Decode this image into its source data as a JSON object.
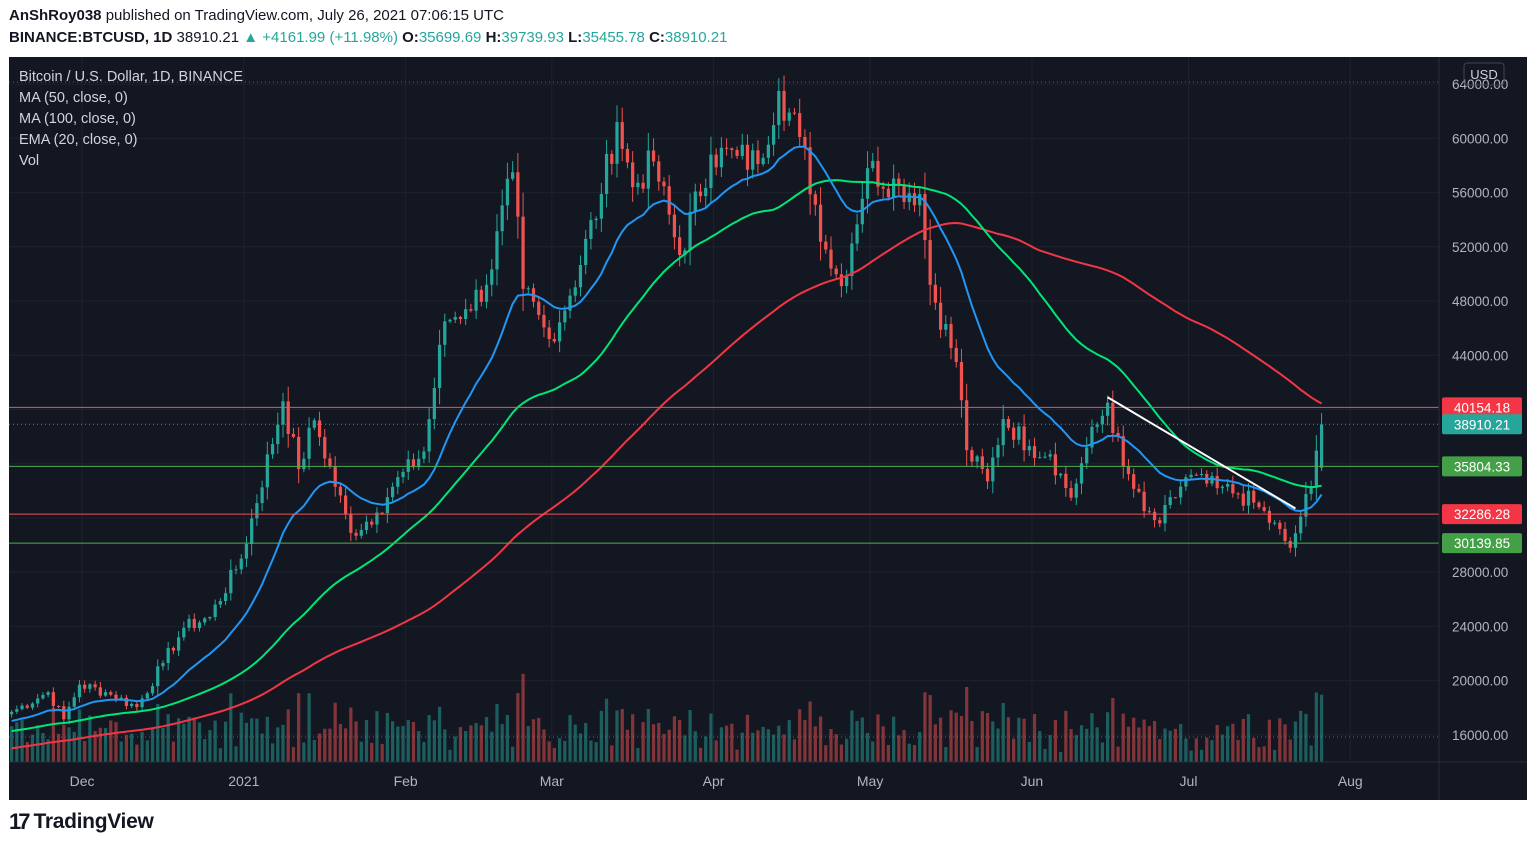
{
  "header": {
    "publisher": "AnShRoy038",
    "published_text": "published on TradingView.com, July 26, 2021 07:06:15 UTC",
    "symbol": "BINANCE:BTCUSD, 1D",
    "last": "38910.21",
    "change": "+4161.99 (+11.98%)",
    "o_label": "O:",
    "o": "35699.69",
    "h_label": "H:",
    "h": "39739.93",
    "l_label": "L:",
    "l": "35455.78",
    "c_label": "C:",
    "c": "38910.21"
  },
  "legend": {
    "title": "Bitcoin / U.S. Dollar, 1D, BINANCE",
    "ma50": "MA (50, close, 0)",
    "ma100": "MA (100, close, 0)",
    "ema20": "EMA (20, close, 0)",
    "vol": "Vol"
  },
  "footer": {
    "brand": "TradingView",
    "mark": "17"
  },
  "colors": {
    "background": "#131722",
    "up": "#26a69a",
    "down": "#ef5350",
    "ma50": "#00e676",
    "ma100": "#f23645",
    "ema20": "#2196f3",
    "trendline": "#ffffff"
  },
  "chart_data": {
    "type": "candlestick",
    "currency": "USD",
    "y_ticks": [
      16000,
      20000,
      24000,
      28000,
      32000,
      36000,
      40000,
      44000,
      48000,
      52000,
      56000,
      60000,
      64000
    ],
    "y_tick_labels": [
      "16000.00",
      "20000.00",
      "24000.00",
      "28000.00",
      "32000.00",
      "36000.00",
      "40000.00",
      "44000.00",
      "48000.00",
      "52000.00",
      "56000.00",
      "60000.00",
      "64000.00"
    ],
    "ylim": [
      14000,
      66000
    ],
    "x_start": "2020-11-17",
    "x_end": "2021-08-18",
    "x_ticks": [
      {
        "date": "2020-12-01",
        "label": "Dec"
      },
      {
        "date": "2021-01-01",
        "label": "2021"
      },
      {
        "date": "2021-02-01",
        "label": "Feb"
      },
      {
        "date": "2021-03-01",
        "label": "Mar"
      },
      {
        "date": "2021-04-01",
        "label": "Apr"
      },
      {
        "date": "2021-05-01",
        "label": "May"
      },
      {
        "date": "2021-06-01",
        "label": "Jun"
      },
      {
        "date": "2021-07-01",
        "label": "Jul"
      },
      {
        "date": "2021-08-01",
        "label": "Aug"
      }
    ],
    "key_close_anchors": [
      [
        "2020-11-17",
        17700
      ],
      [
        "2020-11-24",
        19150
      ],
      [
        "2020-11-27",
        17150
      ],
      [
        "2020-11-30",
        19700
      ],
      [
        "2020-12-05",
        19150
      ],
      [
        "2020-12-11",
        18050
      ],
      [
        "2020-12-16",
        21300
      ],
      [
        "2020-12-20",
        23900
      ],
      [
        "2020-12-25",
        24700
      ],
      [
        "2020-12-31",
        29000
      ],
      [
        "2021-01-08",
        40600
      ],
      [
        "2021-01-11",
        35600
      ],
      [
        "2021-01-14",
        39200
      ],
      [
        "2021-01-21",
        30900
      ],
      [
        "2021-01-26",
        32400
      ],
      [
        "2021-01-29",
        34300
      ],
      [
        "2021-02-04",
        36900
      ],
      [
        "2021-02-08",
        46500
      ],
      [
        "2021-02-12",
        47400
      ],
      [
        "2021-02-16",
        49200
      ],
      [
        "2021-02-21",
        57500
      ],
      [
        "2021-02-23",
        48900
      ],
      [
        "2021-02-28",
        45200
      ],
      [
        "2021-03-04",
        48400
      ],
      [
        "2021-03-10",
        55900
      ],
      [
        "2021-03-13",
        61200
      ],
      [
        "2021-03-16",
        56400
      ],
      [
        "2021-03-20",
        58300
      ],
      [
        "2021-03-25",
        51400
      ],
      [
        "2021-03-31",
        58800
      ],
      [
        "2021-04-05",
        58700
      ],
      [
        "2021-04-09",
        58100
      ],
      [
        "2021-04-13",
        63500
      ],
      [
        "2021-04-17",
        60100
      ],
      [
        "2021-04-22",
        51800
      ],
      [
        "2021-04-25",
        49100
      ],
      [
        "2021-04-30",
        57800
      ],
      [
        "2021-05-06",
        56500
      ],
      [
        "2021-05-10",
        55900
      ],
      [
        "2021-05-12",
        49200
      ],
      [
        "2021-05-17",
        43500
      ],
      [
        "2021-05-19",
        37000
      ],
      [
        "2021-05-23",
        34700
      ],
      [
        "2021-05-26",
        39300
      ],
      [
        "2021-05-31",
        37300
      ],
      [
        "2021-06-04",
        36700
      ],
      [
        "2021-06-08",
        33500
      ],
      [
        "2021-06-11",
        37200
      ],
      [
        "2021-06-15",
        40500
      ],
      [
        "2021-06-18",
        35800
      ],
      [
        "2021-06-22",
        32500
      ],
      [
        "2021-06-25",
        31600
      ],
      [
        "2021-06-30",
        35000
      ],
      [
        "2021-07-06",
        34200
      ],
      [
        "2021-07-10",
        33800
      ],
      [
        "2021-07-14",
        32800
      ],
      [
        "2021-07-20",
        29800
      ],
      [
        "2021-07-22",
        32100
      ],
      [
        "2021-07-24",
        34300
      ],
      [
        "2021-07-26",
        38910
      ]
    ],
    "last_ohlc": {
      "date": "2021-07-26",
      "o": 35699.69,
      "h": 39739.93,
      "l": 35455.78,
      "c": 38910.21
    },
    "horizontal_levels": [
      {
        "value": 40154.18,
        "label": "40154.18",
        "color": "#ef5350"
      },
      {
        "value": 35804.33,
        "label": "35804.33",
        "color": "#4caf50"
      },
      {
        "value": 32286.28,
        "label": "32286.28",
        "color": "#ef5350"
      },
      {
        "value": 30139.85,
        "label": "30139.85",
        "color": "#4caf50"
      }
    ],
    "last_price_label": "38910.21",
    "trendline": {
      "from": {
        "date": "2021-06-15",
        "value": 40900
      },
      "to": {
        "date": "2021-07-21",
        "value": 32700
      }
    },
    "indicators": [
      "MA (50, close, 0)",
      "MA (100, close, 0)",
      "EMA (20, close, 0)",
      "Vol"
    ]
  }
}
